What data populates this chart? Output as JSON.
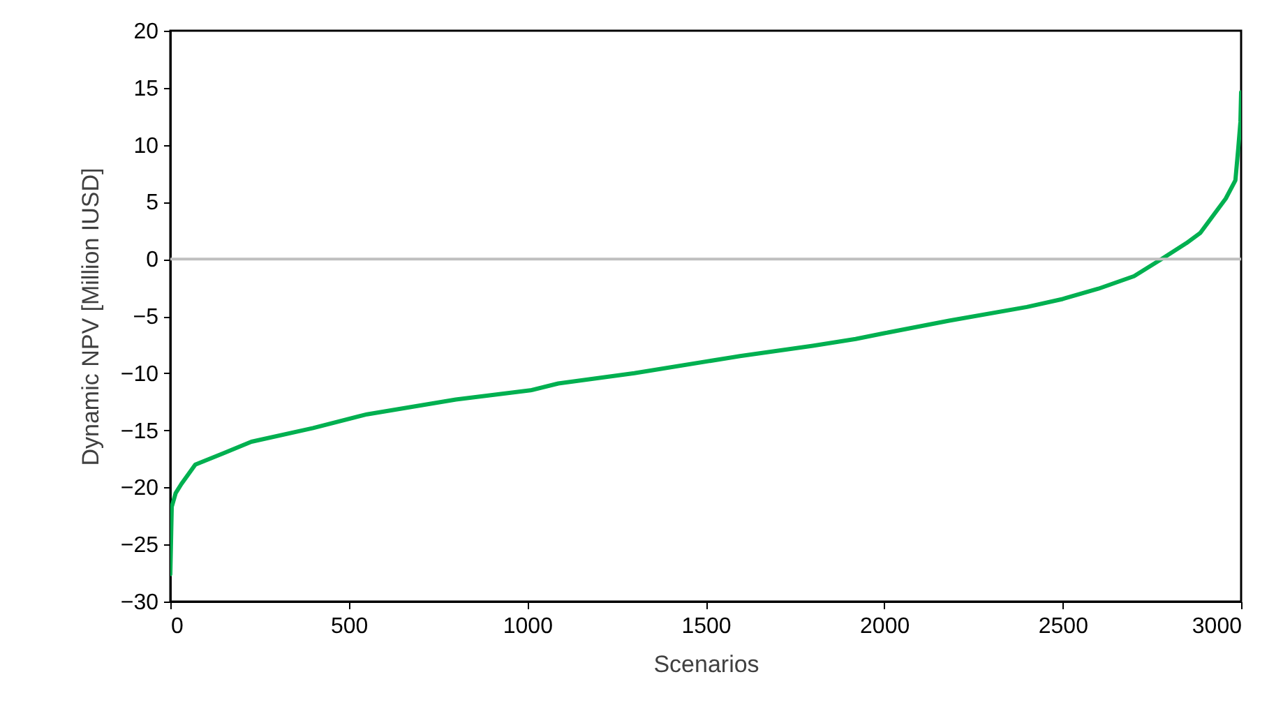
{
  "chart_data": {
    "type": "line",
    "xlabel": "Scenarios",
    "ylabel": "Dynamic NPV [Million IUSD]",
    "x": [
      0,
      4,
      15,
      31,
      70,
      150,
      227,
      400,
      551,
      800,
      1009,
      1087,
      1300,
      1596,
      1800,
      1920,
      2000,
      2182,
      2400,
      2500,
      2600,
      2700,
      2777,
      2847,
      2886,
      2957,
      2984,
      2992,
      2998,
      3000
    ],
    "series": [
      {
        "color": "#00b050",
        "values": [
          -27.6,
          -21.7,
          -20.5,
          -19.7,
          -18,
          -17,
          -16,
          -14.8,
          -13.6,
          -12.3,
          -11.5,
          -10.9,
          -10,
          -8.5,
          -7.6,
          -7,
          -6.5,
          -5.4,
          -4.2,
          -3.5,
          -2.6,
          -1.5,
          0,
          1.4,
          2.3,
          5.3,
          6.9,
          9.7,
          12,
          14.6
        ]
      }
    ],
    "xlim": [
      0,
      3000
    ],
    "xticks": [
      0,
      500,
      1000,
      1500,
      2000,
      2500,
      3000
    ],
    "ylim": [
      -30,
      20
    ],
    "yticks": [
      -30,
      -25,
      -20,
      -15,
      -10,
      -5,
      0,
      5,
      10,
      15,
      20
    ],
    "ref_lines": [
      {
        "axis": "y",
        "value": 0,
        "color": "#bfbfbf"
      }
    ],
    "line_style": "solid"
  }
}
